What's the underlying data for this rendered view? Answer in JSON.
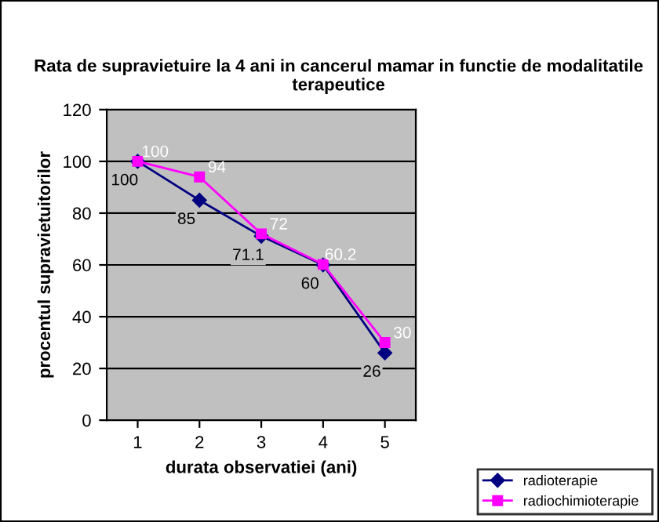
{
  "chart_data": {
    "type": "line",
    "title": "Rata de supravietuire la 4 ani in cancerul mamar in functie de modalitatile terapeutice",
    "xlabel": "durata observatiei (ani)",
    "ylabel": "procentul supravietuitorilor",
    "categories": [
      "1",
      "2",
      "3",
      "4",
      "5"
    ],
    "series": [
      {
        "name": "radioterapie",
        "color": "#000080",
        "marker": "diamond",
        "values": [
          100,
          85,
          71.1,
          60,
          26
        ]
      },
      {
        "name": "radiochimioterapie",
        "color": "#ff00ff",
        "marker": "square",
        "values": [
          100,
          94,
          72,
          60.2,
          30
        ]
      }
    ],
    "ylim": [
      0,
      120
    ],
    "yticks": [
      0,
      20,
      40,
      60,
      80,
      100,
      120
    ],
    "grid": "y",
    "legend": "bottom right",
    "data_labels": true,
    "line_style": "solid"
  }
}
